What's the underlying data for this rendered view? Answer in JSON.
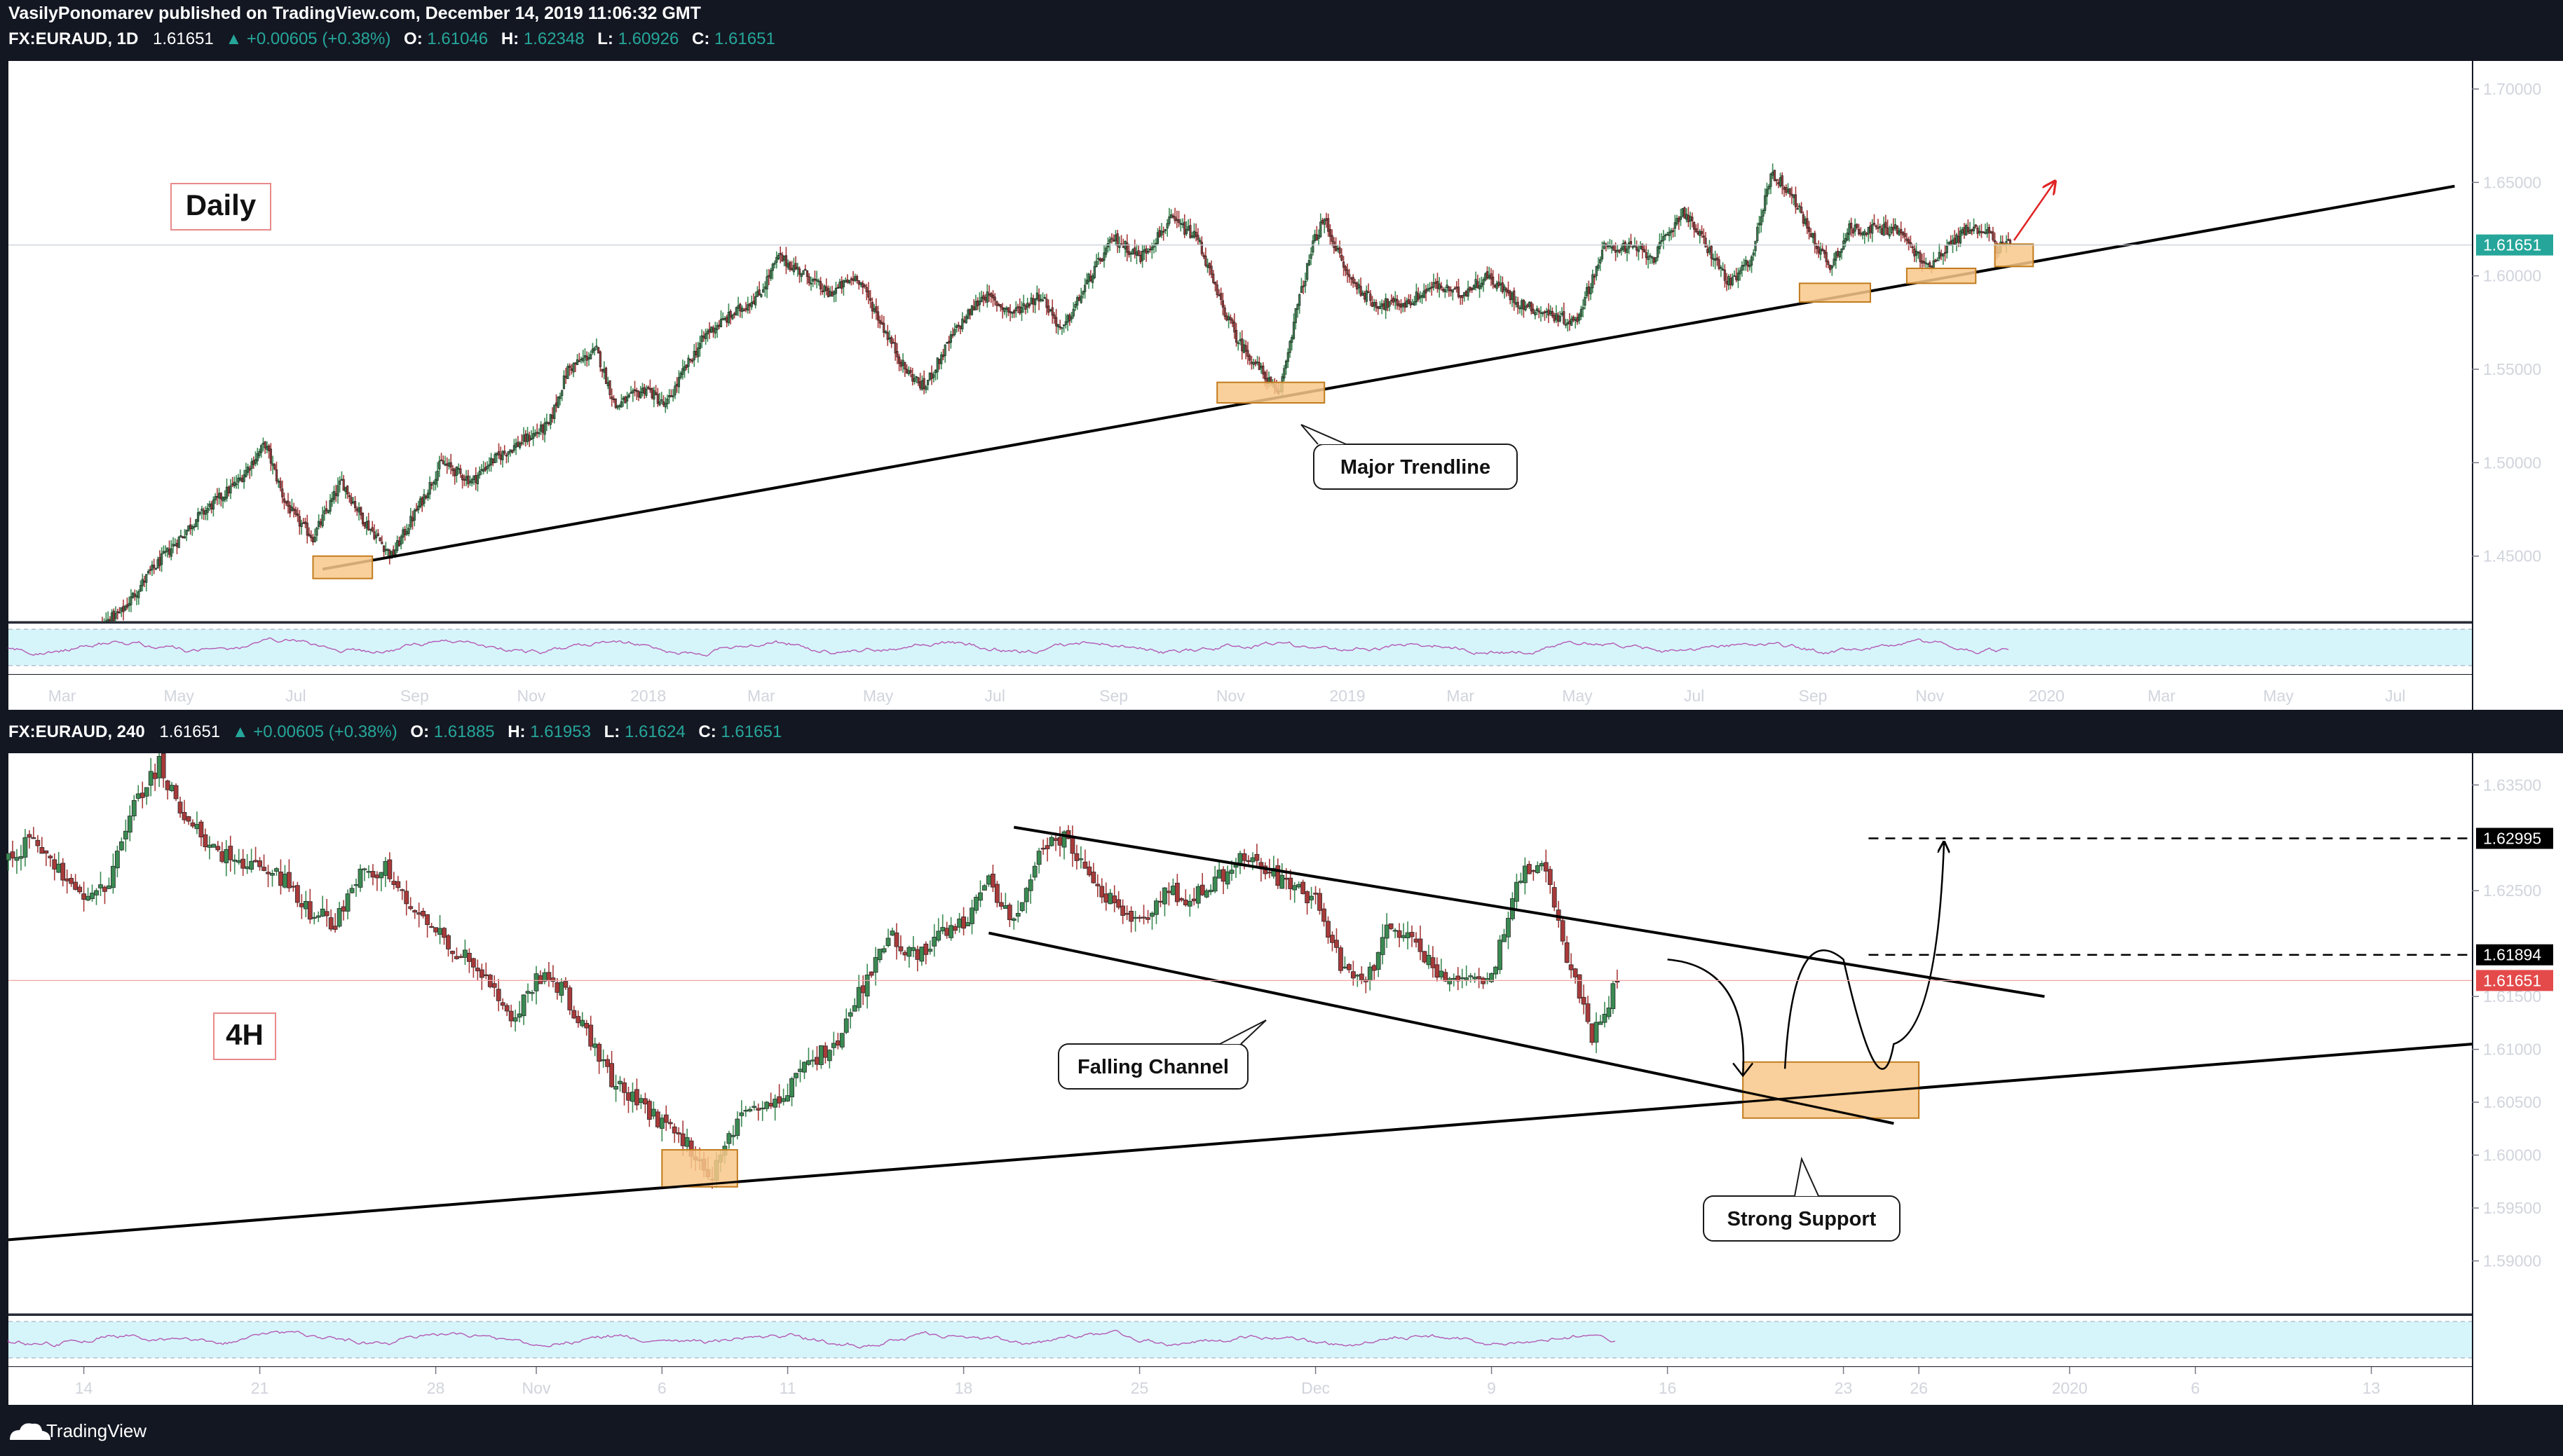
{
  "header": {
    "publisher": "VasilyPonomarev published on TradingView.com, December 14, 2019 11:06:32 GMT",
    "daily_legend": {
      "symbol": "FX:EURAUD, 1D",
      "price": "1.61651",
      "change": "▲ +0.00605 (+0.38%)",
      "o_label": "O:",
      "o": "1.61046",
      "h_label": "H:",
      "h": "1.62348",
      "l_label": "L:",
      "l": "1.60926",
      "c_label": "C:",
      "c": "1.61651"
    },
    "h4_legend": {
      "symbol": "FX:EURAUD, 240",
      "price": "1.61651",
      "change": "▲ +0.00605 (+0.38%)",
      "o_label": "O:",
      "o": "1.61885",
      "h_label": "H:",
      "h": "1.61953",
      "l_label": "L:",
      "l": "1.61624",
      "c_label": "C:",
      "c": "1.61651"
    }
  },
  "footer": {
    "brand": "TradingView"
  },
  "colors": {
    "background": "#131722",
    "pane": "#ffffff",
    "up_candle": "#3a8a52",
    "down_candle": "#a83a3a",
    "zone_fill": "#f8c88a",
    "zone_stroke": "#c27c1e",
    "rsi_band": "#d6f5fb",
    "rsi_line": "#b45ab4",
    "current_price_bg": "#26a69a",
    "current_price_bg_4h": "#e44a4a",
    "marker_bg": "#000000"
  },
  "chart_data": [
    {
      "type": "candlestick",
      "title": "Daily",
      "symbol": "FX:EURAUD",
      "timeframe": "1D",
      "ylim": [
        1.415,
        1.715
      ],
      "y_ticks": [
        "1.70000",
        "1.65000",
        "1.60000",
        "1.55000",
        "1.50000",
        "1.45000"
      ],
      "x_ticks": [
        "Mar",
        "May",
        "Jul",
        "Sep",
        "Nov",
        "2018",
        "Mar",
        "May",
        "Jul",
        "Sep",
        "Nov",
        "2019",
        "Mar",
        "May",
        "Jul",
        "Sep",
        "Nov",
        "2020",
        "Mar",
        "May",
        "Jul"
      ],
      "current_price_label": "1.61651",
      "current_price": 1.61651,
      "price_path": [
        {
          "x": "2017-02-10",
          "y": 1.38
        },
        {
          "x": "2017-03-01",
          "y": 1.4
        },
        {
          "x": "2017-04-01",
          "y": 1.42
        },
        {
          "x": "2017-04-15",
          "y": 1.44
        },
        {
          "x": "2017-05-10",
          "y": 1.47
        },
        {
          "x": "2017-06-01",
          "y": 1.49
        },
        {
          "x": "2017-06-15",
          "y": 1.51
        },
        {
          "x": "2017-06-25",
          "y": 1.48
        },
        {
          "x": "2017-07-01",
          "y": 1.47
        },
        {
          "x": "2017-07-10",
          "y": 1.46
        },
        {
          "x": "2017-07-25",
          "y": 1.49
        },
        {
          "x": "2017-08-05",
          "y": 1.47
        },
        {
          "x": "2017-08-20",
          "y": 1.45
        },
        {
          "x": "2017-09-05",
          "y": 1.48
        },
        {
          "x": "2017-09-15",
          "y": 1.5
        },
        {
          "x": "2017-10-01",
          "y": 1.49
        },
        {
          "x": "2017-10-10",
          "y": 1.5
        },
        {
          "x": "2017-10-25",
          "y": 1.51
        },
        {
          "x": "2017-11-10",
          "y": 1.52
        },
        {
          "x": "2017-11-20",
          "y": 1.55
        },
        {
          "x": "2017-12-05",
          "y": 1.56
        },
        {
          "x": "2017-12-15",
          "y": 1.53
        },
        {
          "x": "2017-12-31",
          "y": 1.54
        },
        {
          "x": "2018-01-10",
          "y": 1.53
        },
        {
          "x": "2018-01-20",
          "y": 1.55
        },
        {
          "x": "2018-02-01",
          "y": 1.57
        },
        {
          "x": "2018-02-15",
          "y": 1.58
        },
        {
          "x": "2018-02-28",
          "y": 1.59
        },
        {
          "x": "2018-03-10",
          "y": 1.61
        },
        {
          "x": "2018-03-25",
          "y": 1.6
        },
        {
          "x": "2018-04-05",
          "y": 1.59
        },
        {
          "x": "2018-04-20",
          "y": 1.6
        },
        {
          "x": "2018-05-05",
          "y": 1.57
        },
        {
          "x": "2018-05-15",
          "y": 1.55
        },
        {
          "x": "2018-05-25",
          "y": 1.54
        },
        {
          "x": "2018-06-10",
          "y": 1.57
        },
        {
          "x": "2018-06-25",
          "y": 1.59
        },
        {
          "x": "2018-07-10",
          "y": 1.58
        },
        {
          "x": "2018-07-25",
          "y": 1.59
        },
        {
          "x": "2018-08-05",
          "y": 1.57
        },
        {
          "x": "2018-08-20",
          "y": 1.6
        },
        {
          "x": "2018-09-01",
          "y": 1.62
        },
        {
          "x": "2018-09-15",
          "y": 1.61
        },
        {
          "x": "2018-10-01",
          "y": 1.63
        },
        {
          "x": "2018-10-15",
          "y": 1.62
        },
        {
          "x": "2018-10-25",
          "y": 1.59
        },
        {
          "x": "2018-11-05",
          "y": 1.565
        },
        {
          "x": "2018-11-20",
          "y": 1.545
        },
        {
          "x": "2018-11-26",
          "y": 1.535
        },
        {
          "x": "2018-12-05",
          "y": 1.58
        },
        {
          "x": "2018-12-15",
          "y": 1.62
        },
        {
          "x": "2018-12-20",
          "y": 1.63
        },
        {
          "x": "2019-01-01",
          "y": 1.6
        },
        {
          "x": "2019-01-15",
          "y": 1.585
        },
        {
          "x": "2019-02-01",
          "y": 1.585
        },
        {
          "x": "2019-02-15",
          "y": 1.595
        },
        {
          "x": "2019-03-01",
          "y": 1.59
        },
        {
          "x": "2019-03-15",
          "y": 1.6
        },
        {
          "x": "2019-04-01",
          "y": 1.585
        },
        {
          "x": "2019-04-15",
          "y": 1.58
        },
        {
          "x": "2019-04-30",
          "y": 1.575
        },
        {
          "x": "2019-05-15",
          "y": 1.615
        },
        {
          "x": "2019-05-30",
          "y": 1.615
        },
        {
          "x": "2019-06-10",
          "y": 1.61
        },
        {
          "x": "2019-06-25",
          "y": 1.635
        },
        {
          "x": "2019-07-05",
          "y": 1.62
        },
        {
          "x": "2019-07-20",
          "y": 1.595
        },
        {
          "x": "2019-07-31",
          "y": 1.61
        },
        {
          "x": "2019-08-10",
          "y": 1.655
        },
        {
          "x": "2019-08-20",
          "y": 1.645
        },
        {
          "x": "2019-09-01",
          "y": 1.62
        },
        {
          "x": "2019-09-10",
          "y": 1.605
        },
        {
          "x": "2019-09-20",
          "y": 1.625
        },
        {
          "x": "2019-10-01",
          "y": 1.625
        },
        {
          "x": "2019-10-15",
          "y": 1.625
        },
        {
          "x": "2019-10-30",
          "y": 1.605
        },
        {
          "x": "2019-11-10",
          "y": 1.615
        },
        {
          "x": "2019-11-20",
          "y": 1.625
        },
        {
          "x": "2019-12-01",
          "y": 1.625
        },
        {
          "x": "2019-12-06",
          "y": 1.615
        },
        {
          "x": "2019-12-13",
          "y": 1.6165
        }
      ],
      "annotations": {
        "labels": [
          {
            "text": "Daily"
          },
          {
            "text": "Major Trendline"
          }
        ],
        "trendline": [
          {
            "x": "2017-07-15",
            "y": 1.443
          },
          {
            "x": "2020-08-01",
            "y": 1.648
          }
        ],
        "support_zones": [
          {
            "x0": "2017-07-10",
            "x1": "2017-08-10",
            "y0": 1.438,
            "y1": 1.45
          },
          {
            "x0": "2018-10-25",
            "x1": "2018-12-20",
            "y0": 1.532,
            "y1": 1.543
          },
          {
            "x0": "2019-08-25",
            "x1": "2019-10-01",
            "y0": 1.586,
            "y1": 1.596
          },
          {
            "x0": "2019-10-20",
            "x1": "2019-11-25",
            "y0": 1.596,
            "y1": 1.604
          },
          {
            "x0": "2019-12-05",
            "x1": "2019-12-25",
            "y0": 1.605,
            "y1": 1.617
          }
        ],
        "projection_arrow": [
          {
            "x": "2019-12-15",
            "y": 1.619
          },
          {
            "x": "2020-01-05",
            "y": 1.65
          }
        ]
      }
    },
    {
      "type": "candlestick",
      "title": "4H",
      "symbol": "FX:EURAUD",
      "timeframe": "240",
      "ylim": [
        1.585,
        1.638
      ],
      "y_ticks": [
        "1.63500",
        "1.62500",
        "1.61500",
        "1.61000",
        "1.60500",
        "1.60000",
        "1.59500",
        "1.59000"
      ],
      "x_ticks": [
        "14",
        "21",
        "28",
        "Nov",
        "6",
        "11",
        "18",
        "25",
        "Dec",
        "9",
        "16",
        "23",
        "26",
        "2020",
        "6",
        "13"
      ],
      "x_tick_dates": [
        "2019-10-14",
        "2019-10-21",
        "2019-10-28",
        "2019-11-01",
        "2019-11-06",
        "2019-11-11",
        "2019-11-18",
        "2019-11-25",
        "2019-12-02",
        "2019-12-09",
        "2019-12-16",
        "2019-12-23",
        "2019-12-26",
        "2020-01-01",
        "2020-01-06",
        "2020-01-13"
      ],
      "current_price_label": "1.61651",
      "current_price": 1.61651,
      "level_labels": [
        "1.62995",
        "1.61894"
      ],
      "price_path": [
        {
          "x": "2019-10-11",
          "y": 1.628
        },
        {
          "x": "2019-10-12",
          "y": 1.63
        },
        {
          "x": "2019-10-14",
          "y": 1.624
        },
        {
          "x": "2019-10-15",
          "y": 1.626
        },
        {
          "x": "2019-10-16",
          "y": 1.633
        },
        {
          "x": "2019-10-17",
          "y": 1.637
        },
        {
          "x": "2019-10-18",
          "y": 1.632
        },
        {
          "x": "2019-10-19",
          "y": 1.629
        },
        {
          "x": "2019-10-21",
          "y": 1.627
        },
        {
          "x": "2019-10-22",
          "y": 1.626
        },
        {
          "x": "2019-10-23",
          "y": 1.623
        },
        {
          "x": "2019-10-24",
          "y": 1.622
        },
        {
          "x": "2019-10-25",
          "y": 1.627
        },
        {
          "x": "2019-10-26",
          "y": 1.627
        },
        {
          "x": "2019-10-28",
          "y": 1.621
        },
        {
          "x": "2019-10-29",
          "y": 1.619
        },
        {
          "x": "2019-10-30",
          "y": 1.617
        },
        {
          "x": "2019-10-31",
          "y": 1.612
        },
        {
          "x": "2019-11-01",
          "y": 1.617
        },
        {
          "x": "2019-11-02",
          "y": 1.616
        },
        {
          "x": "2019-11-04",
          "y": 1.607
        },
        {
          "x": "2019-11-05",
          "y": 1.605
        },
        {
          "x": "2019-11-06",
          "y": 1.603
        },
        {
          "x": "2019-11-07",
          "y": 1.601
        },
        {
          "x": "2019-11-08",
          "y": 1.598
        },
        {
          "x": "2019-11-09",
          "y": 1.603
        },
        {
          "x": "2019-11-11",
          "y": 1.606
        },
        {
          "x": "2019-11-12",
          "y": 1.609
        },
        {
          "x": "2019-11-13",
          "y": 1.611
        },
        {
          "x": "2019-11-14",
          "y": 1.616
        },
        {
          "x": "2019-11-15",
          "y": 1.621
        },
        {
          "x": "2019-11-16",
          "y": 1.619
        },
        {
          "x": "2019-11-18",
          "y": 1.622
        },
        {
          "x": "2019-11-19",
          "y": 1.626
        },
        {
          "x": "2019-11-20",
          "y": 1.622
        },
        {
          "x": "2019-11-21",
          "y": 1.629
        },
        {
          "x": "2019-11-22",
          "y": 1.63
        },
        {
          "x": "2019-11-23",
          "y": 1.626
        },
        {
          "x": "2019-11-25",
          "y": 1.622
        },
        {
          "x": "2019-11-26",
          "y": 1.625
        },
        {
          "x": "2019-11-27",
          "y": 1.624
        },
        {
          "x": "2019-11-28",
          "y": 1.626
        },
        {
          "x": "2019-11-29",
          "y": 1.628
        },
        {
          "x": "2019-11-30",
          "y": 1.627
        },
        {
          "x": "2019-12-02",
          "y": 1.624
        },
        {
          "x": "2019-12-03",
          "y": 1.618
        },
        {
          "x": "2019-12-04",
          "y": 1.616
        },
        {
          "x": "2019-12-05",
          "y": 1.622
        },
        {
          "x": "2019-12-06",
          "y": 1.62
        },
        {
          "x": "2019-12-07",
          "y": 1.617
        },
        {
          "x": "2019-12-09",
          "y": 1.617
        },
        {
          "x": "2019-12-10",
          "y": 1.626
        },
        {
          "x": "2019-12-11",
          "y": 1.628
        },
        {
          "x": "2019-12-12",
          "y": 1.619
        },
        {
          "x": "2019-12-13",
          "y": 1.611
        },
        {
          "x": "2019-12-14",
          "y": 1.6165
        }
      ],
      "annotations": {
        "labels": [
          {
            "text": "4H"
          },
          {
            "text": "Falling Channel"
          },
          {
            "text": "Strong Support"
          }
        ],
        "channel_upper": [
          {
            "x": "2019-11-20",
            "y": 1.631
          },
          {
            "x": "2019-12-31",
            "y": 1.615
          }
        ],
        "channel_lower": [
          {
            "x": "2019-11-19",
            "y": 1.621
          },
          {
            "x": "2019-12-25",
            "y": 1.603
          }
        ],
        "long_trendline": [
          {
            "x": "2019-10-11",
            "y": 1.592
          },
          {
            "x": "2020-01-17",
            "y": 1.6105
          }
        ],
        "support_zones": [
          {
            "x0": "2019-11-06",
            "x1": "2019-11-09",
            "y0": 1.597,
            "y1": 1.6005
          },
          {
            "x0": "2019-12-19",
            "x1": "2019-12-26",
            "y0": 1.6035,
            "y1": 1.6088
          }
        ],
        "dashed_levels": [
          {
            "x0": "2019-12-24",
            "x1": "2020-01-17",
            "y": 1.62995
          },
          {
            "x0": "2019-12-24",
            "x1": "2020-01-17",
            "y": 1.61894
          }
        ],
        "projection_path": [
          {
            "x": "2019-12-16",
            "y": 1.6185
          },
          {
            "x": "2019-12-19",
            "y": 1.6075
          },
          {
            "x": "2019-12-23",
            "y": 1.6185
          },
          {
            "x": "2019-12-25",
            "y": 1.6105
          },
          {
            "x": "2019-12-27",
            "y": 1.6295
          }
        ]
      }
    }
  ]
}
